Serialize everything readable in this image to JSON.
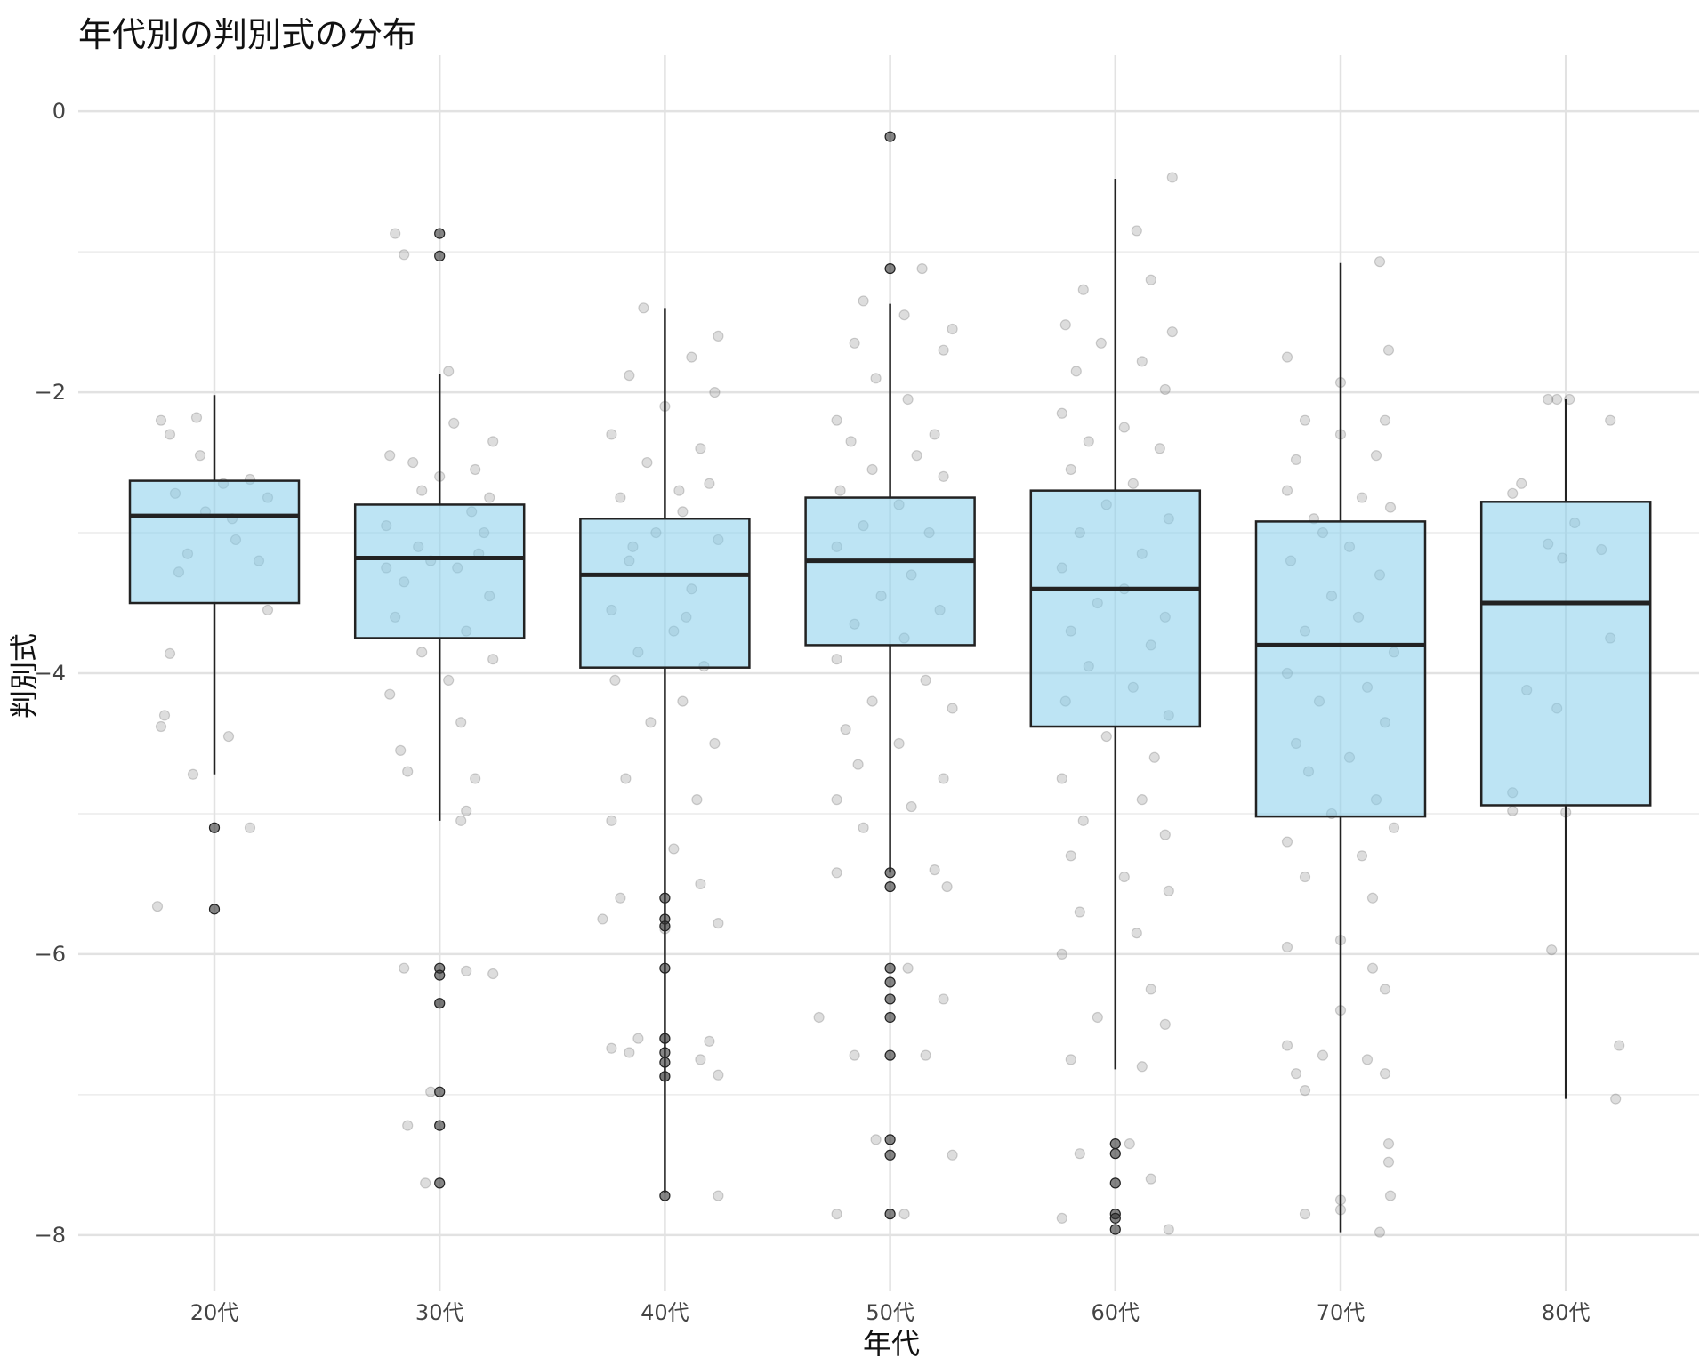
{
  "chart_data": {
    "type": "box",
    "title": "年代別の判別式の分布",
    "xlabel": "年代",
    "ylabel": "判別式",
    "ylim": [
      -8.4,
      0.4
    ],
    "y_ticks": [
      0,
      -2,
      -4,
      -6,
      -8
    ],
    "y_minor_ticks": [
      -1,
      -3,
      -5,
      -7
    ],
    "grid": true,
    "box_fill": "#87CEEB",
    "box_stroke": "#222222",
    "point_color": "#555555",
    "groups": [
      {
        "label": "20代",
        "whisker_low": -4.72,
        "q1": -3.5,
        "median": -2.88,
        "q3": -2.63,
        "whisker_high": -2.02,
        "outliers": [
          -5.1,
          -5.68
        ],
        "jitter": [
          [
            -0.3,
            -2.2
          ],
          [
            -0.25,
            -2.3
          ],
          [
            -0.1,
            -2.18
          ],
          [
            0.05,
            -2.65
          ],
          [
            0.2,
            -2.62
          ],
          [
            -0.22,
            -2.72
          ],
          [
            0.3,
            -2.75
          ],
          [
            0.1,
            -2.9
          ],
          [
            -0.15,
            -3.15
          ],
          [
            0.12,
            -3.05
          ],
          [
            0.25,
            -3.2
          ],
          [
            -0.2,
            -3.28
          ],
          [
            -0.05,
            -2.85
          ],
          [
            0.3,
            -3.55
          ],
          [
            -0.25,
            -3.86
          ],
          [
            -0.3,
            -4.38
          ],
          [
            0.08,
            -4.45
          ],
          [
            -0.28,
            -4.3
          ],
          [
            -0.12,
            -4.72
          ],
          [
            0.2,
            -5.1
          ],
          [
            -0.32,
            -5.66
          ],
          [
            -0.08,
            -2.45
          ]
        ]
      },
      {
        "label": "30代",
        "whisker_low": -5.05,
        "q1": -3.75,
        "median": -3.18,
        "q3": -2.8,
        "whisker_high": -1.87,
        "outliers": [
          -0.87,
          -1.03,
          -6.1,
          -6.15,
          -6.35,
          -6.98,
          -7.22,
          -7.63
        ],
        "jitter": [
          [
            -0.25,
            -0.87
          ],
          [
            -0.2,
            -1.02
          ],
          [
            0.05,
            -1.85
          ],
          [
            0.08,
            -2.22
          ],
          [
            -0.28,
            -2.45
          ],
          [
            -0.15,
            -2.5
          ],
          [
            0.2,
            -2.55
          ],
          [
            0.3,
            -2.35
          ],
          [
            -0.1,
            -2.7
          ],
          [
            0.18,
            -2.85
          ],
          [
            -0.3,
            -2.95
          ],
          [
            0.25,
            -3.0
          ],
          [
            -0.05,
            -3.2
          ],
          [
            0.1,
            -3.25
          ],
          [
            -0.2,
            -3.35
          ],
          [
            0.28,
            -3.45
          ],
          [
            -0.25,
            -3.6
          ],
          [
            0.15,
            -3.7
          ],
          [
            -0.1,
            -3.85
          ],
          [
            0.3,
            -3.9
          ],
          [
            0.05,
            -4.05
          ],
          [
            -0.28,
            -4.15
          ],
          [
            0.12,
            -4.35
          ],
          [
            -0.22,
            -4.55
          ],
          [
            0.2,
            -4.75
          ],
          [
            -0.18,
            -4.7
          ],
          [
            0.15,
            -4.98
          ],
          [
            0.12,
            -5.05
          ],
          [
            -0.2,
            -6.1
          ],
          [
            0.15,
            -6.12
          ],
          [
            0.3,
            -6.14
          ],
          [
            0.0,
            -6.35
          ],
          [
            -0.05,
            -6.98
          ],
          [
            -0.18,
            -7.22
          ],
          [
            -0.08,
            -7.63
          ],
          [
            -0.12,
            -3.1
          ],
          [
            0.22,
            -3.15
          ],
          [
            -0.3,
            -3.25
          ],
          [
            0.0,
            -2.6
          ],
          [
            0.28,
            -2.75
          ]
        ]
      },
      {
        "label": "40代",
        "whisker_low": -7.7,
        "q1": -3.96,
        "median": -3.3,
        "q3": -2.9,
        "whisker_high": -1.4,
        "outliers": [
          -5.6,
          -5.75,
          -5.8,
          -6.1,
          -6.6,
          -6.7,
          -6.77,
          -6.87,
          -7.72
        ],
        "jitter": [
          [
            -0.12,
            -1.4
          ],
          [
            0.3,
            -1.6
          ],
          [
            0.15,
            -1.75
          ],
          [
            -0.2,
            -1.88
          ],
          [
            0.28,
            -2.0
          ],
          [
            0.0,
            -2.1
          ],
          [
            -0.3,
            -2.3
          ],
          [
            0.2,
            -2.4
          ],
          [
            -0.1,
            -2.5
          ],
          [
            0.25,
            -2.65
          ],
          [
            -0.25,
            -2.75
          ],
          [
            0.1,
            -2.85
          ],
          [
            -0.05,
            -3.0
          ],
          [
            0.3,
            -3.05
          ],
          [
            -0.2,
            -3.2
          ],
          [
            0.15,
            -3.4
          ],
          [
            -0.3,
            -3.55
          ],
          [
            0.05,
            -3.7
          ],
          [
            -0.15,
            -3.85
          ],
          [
            0.22,
            -3.95
          ],
          [
            -0.28,
            -4.05
          ],
          [
            0.1,
            -4.2
          ],
          [
            -0.08,
            -4.35
          ],
          [
            0.28,
            -4.5
          ],
          [
            -0.22,
            -4.75
          ],
          [
            0.18,
            -4.9
          ],
          [
            -0.3,
            -5.05
          ],
          [
            0.05,
            -5.25
          ],
          [
            0.2,
            -5.5
          ],
          [
            -0.25,
            -5.6
          ],
          [
            0.3,
            -5.78
          ],
          [
            -0.35,
            -5.75
          ],
          [
            0.0,
            -5.82
          ],
          [
            -0.15,
            -6.6
          ],
          [
            0.25,
            -6.62
          ],
          [
            -0.3,
            -6.67
          ],
          [
            0.0,
            -6.6
          ],
          [
            0.2,
            -6.75
          ],
          [
            0.3,
            -6.86
          ],
          [
            0.0,
            -6.87
          ],
          [
            0.3,
            -7.72
          ],
          [
            -0.2,
            -6.7
          ],
          [
            0.12,
            -3.6
          ],
          [
            -0.18,
            -3.1
          ],
          [
            0.08,
            -2.7
          ]
        ]
      },
      {
        "label": "50代",
        "whisker_low": -5.42,
        "q1": -3.8,
        "median": -3.2,
        "q3": -2.75,
        "whisker_high": -1.37,
        "outliers": [
          -0.18,
          -1.12,
          -5.42,
          -5.52,
          -6.1,
          -6.2,
          -6.32,
          -6.45,
          -6.72,
          -7.32,
          -7.43,
          -7.85
        ],
        "jitter": [
          [
            -0.15,
            -1.35
          ],
          [
            0.08,
            -1.45
          ],
          [
            0.18,
            -1.12
          ],
          [
            0.35,
            -1.55
          ],
          [
            -0.2,
            -1.65
          ],
          [
            0.3,
            -1.7
          ],
          [
            -0.08,
            -1.9
          ],
          [
            0.1,
            -2.05
          ],
          [
            -0.3,
            -2.2
          ],
          [
            0.25,
            -2.3
          ],
          [
            -0.22,
            -2.35
          ],
          [
            0.15,
            -2.45
          ],
          [
            -0.1,
            -2.55
          ],
          [
            0.3,
            -2.6
          ],
          [
            -0.28,
            -2.7
          ],
          [
            0.05,
            -2.8
          ],
          [
            -0.15,
            -2.95
          ],
          [
            0.22,
            -3.0
          ],
          [
            -0.3,
            -3.1
          ],
          [
            0.12,
            -3.3
          ],
          [
            -0.05,
            -3.45
          ],
          [
            0.28,
            -3.55
          ],
          [
            -0.2,
            -3.65
          ],
          [
            0.08,
            -3.75
          ],
          [
            -0.3,
            -3.9
          ],
          [
            0.2,
            -4.05
          ],
          [
            -0.1,
            -4.2
          ],
          [
            0.35,
            -4.25
          ],
          [
            -0.25,
            -4.4
          ],
          [
            0.05,
            -4.5
          ],
          [
            -0.18,
            -4.65
          ],
          [
            0.3,
            -4.75
          ],
          [
            -0.3,
            -4.9
          ],
          [
            0.12,
            -4.95
          ],
          [
            -0.15,
            -5.1
          ],
          [
            0.25,
            -5.4
          ],
          [
            -0.3,
            -5.42
          ],
          [
            0.32,
            -5.52
          ],
          [
            -0.4,
            -6.45
          ],
          [
            0.1,
            -6.1
          ],
          [
            0.3,
            -6.32
          ],
          [
            -0.2,
            -6.72
          ],
          [
            0.2,
            -6.72
          ],
          [
            -0.08,
            -7.32
          ],
          [
            0.35,
            -7.43
          ],
          [
            -0.3,
            -7.85
          ],
          [
            0.08,
            -7.85
          ]
        ]
      },
      {
        "label": "60代",
        "whisker_low": -6.82,
        "q1": -4.38,
        "median": -3.4,
        "q3": -2.7,
        "whisker_high": -0.48,
        "outliers": [
          -7.35,
          -7.42,
          -7.63,
          -7.85,
          -7.88,
          -7.96
        ],
        "jitter": [
          [
            0.32,
            -0.47
          ],
          [
            0.12,
            -0.85
          ],
          [
            -0.18,
            -1.27
          ],
          [
            0.2,
            -1.2
          ],
          [
            -0.28,
            -1.52
          ],
          [
            0.32,
            -1.57
          ],
          [
            -0.08,
            -1.65
          ],
          [
            0.15,
            -1.78
          ],
          [
            -0.22,
            -1.85
          ],
          [
            0.28,
            -1.98
          ],
          [
            -0.3,
            -2.15
          ],
          [
            0.05,
            -2.25
          ],
          [
            -0.15,
            -2.35
          ],
          [
            0.25,
            -2.4
          ],
          [
            -0.25,
            -2.55
          ],
          [
            0.1,
            -2.65
          ],
          [
            -0.05,
            -2.8
          ],
          [
            0.3,
            -2.9
          ],
          [
            -0.2,
            -3.0
          ],
          [
            0.15,
            -3.15
          ],
          [
            -0.3,
            -3.25
          ],
          [
            0.05,
            -3.4
          ],
          [
            -0.1,
            -3.5
          ],
          [
            0.28,
            -3.6
          ],
          [
            -0.25,
            -3.7
          ],
          [
            0.2,
            -3.8
          ],
          [
            -0.15,
            -3.95
          ],
          [
            0.1,
            -4.1
          ],
          [
            -0.28,
            -4.2
          ],
          [
            0.3,
            -4.3
          ],
          [
            -0.05,
            -4.45
          ],
          [
            0.22,
            -4.6
          ],
          [
            -0.3,
            -4.75
          ],
          [
            0.15,
            -4.9
          ],
          [
            -0.18,
            -5.05
          ],
          [
            0.28,
            -5.15
          ],
          [
            -0.25,
            -5.3
          ],
          [
            0.05,
            -5.45
          ],
          [
            0.3,
            -5.55
          ],
          [
            -0.2,
            -5.7
          ],
          [
            0.12,
            -5.85
          ],
          [
            -0.3,
            -6.0
          ],
          [
            0.2,
            -6.25
          ],
          [
            -0.1,
            -6.45
          ],
          [
            0.28,
            -6.5
          ],
          [
            -0.25,
            -6.75
          ],
          [
            0.15,
            -6.8
          ],
          [
            -0.2,
            -7.42
          ],
          [
            0.08,
            -7.35
          ],
          [
            -0.3,
            -7.88
          ],
          [
            0.2,
            -7.6
          ],
          [
            0.3,
            -7.96
          ]
        ]
      },
      {
        "label": "70代",
        "whisker_low": -7.98,
        "q1": -5.02,
        "median": -3.8,
        "q3": -2.92,
        "whisker_high": -1.08,
        "outliers": [],
        "jitter": [
          [
            0.22,
            -1.07
          ],
          [
            0.27,
            -1.7
          ],
          [
            -0.3,
            -1.75
          ],
          [
            0.0,
            -1.93
          ],
          [
            -0.2,
            -2.2
          ],
          [
            0.25,
            -2.2
          ],
          [
            0.0,
            -2.3
          ],
          [
            -0.25,
            -2.48
          ],
          [
            0.2,
            -2.45
          ],
          [
            -0.3,
            -2.7
          ],
          [
            0.12,
            -2.75
          ],
          [
            -0.15,
            -2.9
          ],
          [
            0.28,
            -2.82
          ],
          [
            -0.1,
            -3.0
          ],
          [
            0.05,
            -3.1
          ],
          [
            -0.28,
            -3.2
          ],
          [
            0.22,
            -3.3
          ],
          [
            -0.05,
            -3.45
          ],
          [
            0.1,
            -3.6
          ],
          [
            -0.2,
            -3.7
          ],
          [
            0.3,
            -3.85
          ],
          [
            -0.3,
            -4.0
          ],
          [
            0.15,
            -4.1
          ],
          [
            -0.12,
            -4.2
          ],
          [
            0.25,
            -4.35
          ],
          [
            -0.25,
            -4.5
          ],
          [
            0.05,
            -4.6
          ],
          [
            -0.18,
            -4.7
          ],
          [
            0.2,
            -4.9
          ],
          [
            -0.05,
            -5.0
          ],
          [
            0.3,
            -5.1
          ],
          [
            -0.3,
            -5.2
          ],
          [
            0.12,
            -5.3
          ],
          [
            -0.2,
            -5.45
          ],
          [
            0.18,
            -5.6
          ],
          [
            -0.3,
            -5.95
          ],
          [
            0.0,
            -5.9
          ],
          [
            0.18,
            -6.1
          ],
          [
            0.25,
            -6.25
          ],
          [
            0.0,
            -6.4
          ],
          [
            -0.3,
            -6.65
          ],
          [
            0.15,
            -6.75
          ],
          [
            -0.1,
            -6.72
          ],
          [
            -0.25,
            -6.85
          ],
          [
            0.25,
            -6.85
          ],
          [
            -0.2,
            -6.97
          ],
          [
            0.0,
            -7.75
          ],
          [
            0.27,
            -7.35
          ],
          [
            0.27,
            -7.48
          ],
          [
            0.28,
            -7.72
          ],
          [
            -0.2,
            -7.85
          ],
          [
            0.0,
            -7.82
          ],
          [
            0.22,
            -7.98
          ]
        ]
      },
      {
        "label": "80代",
        "whisker_low": -7.03,
        "q1": -4.94,
        "median": -3.5,
        "q3": -2.78,
        "whisker_high": -2.05,
        "outliers": [],
        "jitter": [
          [
            -0.1,
            -2.05
          ],
          [
            -0.05,
            -2.05
          ],
          [
            0.02,
            -2.05
          ],
          [
            0.25,
            -2.2
          ],
          [
            -0.3,
            -2.72
          ],
          [
            -0.25,
            -2.65
          ],
          [
            0.05,
            -2.93
          ],
          [
            -0.1,
            -3.08
          ],
          [
            -0.02,
            -3.18
          ],
          [
            0.2,
            -3.12
          ],
          [
            0.25,
            -3.75
          ],
          [
            -0.22,
            -4.12
          ],
          [
            -0.05,
            -4.25
          ],
          [
            -0.3,
            -4.85
          ],
          [
            -0.3,
            -4.98
          ],
          [
            0.0,
            -4.99
          ],
          [
            -0.08,
            -5.97
          ],
          [
            0.3,
            -6.65
          ],
          [
            0.28,
            -7.03
          ]
        ]
      }
    ]
  }
}
